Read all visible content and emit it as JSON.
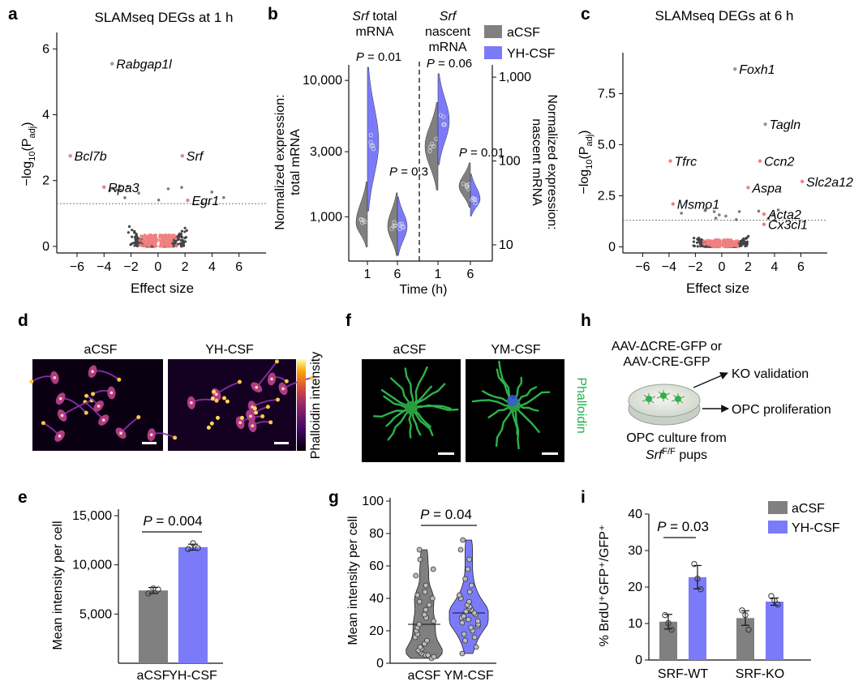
{
  "colors": {
    "acsf": "#808080",
    "yh": "#7B7BFA",
    "sig": "#F08080",
    "ns": "#444444",
    "green": "#22B04B"
  },
  "panels": {
    "a": "a",
    "b": "b",
    "c": "c",
    "d": "d",
    "e": "e",
    "f": "f",
    "g": "g",
    "h": "h",
    "i": "i"
  },
  "legend": {
    "acsf": "aCSF",
    "yh": "YH-CSF"
  },
  "panel_a": {
    "title": "SLAMseq DEGs at 1 h",
    "xlabel": "Effect size",
    "ylabel_pre": "−log",
    "ylabel_sub": "10",
    "ylabel_mid": "(P",
    "ylabel_psub": "adj",
    "ylabel_post": ")",
    "xticks": [
      "−6",
      "−4",
      "−2",
      "0",
      "2",
      "4",
      "6"
    ],
    "yticks": [
      "0",
      "2",
      "4",
      "6"
    ]
  },
  "panel_b": {
    "left_title": [
      "Srf",
      " total",
      "mRNA"
    ],
    "right_title": [
      "Srf",
      "nascent",
      "mRNA"
    ],
    "ylabel_left": [
      "Normalized expression:",
      "total mRNA"
    ],
    "ylabel_right": [
      "Normalized expression:",
      "nascent mRNA"
    ],
    "yticks_left": [
      "1,000",
      "3,000",
      "10,000"
    ],
    "yticks_right": [
      "10",
      "100",
      "1,000"
    ],
    "xticks": [
      "1",
      "6",
      "1",
      "6"
    ],
    "xlabel": "Time (h)",
    "pvals": [
      "P = 0.01",
      "P = 0.3",
      "P = 0.06",
      "P = 0.01"
    ]
  },
  "panel_c": {
    "title": "SLAMseq DEGs at 6 h",
    "xlabel": "Effect size",
    "ylabel_pre": "−log",
    "ylabel_sub": "10",
    "ylabel_mid": "(P",
    "ylabel_psub": "adj",
    "ylabel_post": ")",
    "xticks": [
      "−6",
      "−4",
      "−2",
      "0",
      "2",
      "4",
      "6"
    ],
    "yticks": [
      "0",
      "2.5",
      "5.0",
      "7.5"
    ]
  },
  "panel_d": {
    "left": "aCSF",
    "right": "YH-CSF",
    "colorbar": "Phalloidin intensity"
  },
  "panel_f": {
    "left": "aCSF",
    "right": "YM-CSF",
    "stain": "Phalloidin"
  },
  "panel_h": {
    "line1": "AAV-ΔCRE-GFP or",
    "line2": "AAV-CRE-GFP",
    "out1": "KO validation",
    "out2": "OPC proliferation",
    "bottom1": "OPC culture from",
    "bottom2_gene": "Srf",
    "bottom2_sup": "F/F",
    "bottom2_rest": " pups"
  },
  "panel_e": {
    "ylabel": "Mean intensity per cell",
    "yticks": [
      "5,000",
      "10,000",
      "15,000"
    ],
    "pval": "P = 0.004"
  },
  "panel_g": {
    "ylabel": "Mean intensity per cell",
    "yticks": [
      "0",
      "20",
      "40",
      "60",
      "80",
      "100"
    ],
    "pval": "P = 0.04"
  },
  "panel_i": {
    "ylabel_text": "% BrdU⁺GFP⁺/GFP⁺",
    "yticks": [
      "0",
      "10",
      "20",
      "30",
      "40"
    ],
    "pval": "P = 0.03"
  },
  "chart_data": [
    {
      "panel": "a",
      "type": "scatter",
      "title": "SLAMseq DEGs at 1 h",
      "xlabel": "Effect size",
      "ylabel": "−log10(Padj)",
      "xlim": [
        -7.5,
        8
      ],
      "ylim": [
        -0.2,
        6.5
      ],
      "threshold": 1.3,
      "labeled_points": [
        {
          "gene": "Rabgap1l",
          "x": -3.4,
          "y": 5.55
        },
        {
          "gene": "Bcl7b",
          "x": -6.5,
          "y": 2.75
        },
        {
          "gene": "Srf",
          "x": 1.8,
          "y": 2.75
        },
        {
          "gene": "Rpa3",
          "x": -4.0,
          "y": 1.8
        },
        {
          "gene": "Egr1",
          "x": 2.2,
          "y": 1.4
        }
      ]
    },
    {
      "panel": "b",
      "type": "violin",
      "left_axis": "log",
      "right_axis": "log",
      "groups": [
        {
          "measure": "total",
          "time": "1",
          "aCSF_median": 900,
          "YH-CSF_median": 3500,
          "p": "P = 0.01"
        },
        {
          "measure": "total",
          "time": "6",
          "aCSF_median": 850,
          "YH-CSF_median": 850,
          "p": "P = 0.3"
        },
        {
          "measure": "nascent",
          "time": "1",
          "aCSF_median": 150,
          "YH-CSF_median": 300,
          "p": "P = 0.06"
        },
        {
          "measure": "nascent",
          "time": "6",
          "aCSF_median": 50,
          "YH-CSF_median": 35,
          "p": "P = 0.01"
        }
      ]
    },
    {
      "panel": "c",
      "type": "scatter",
      "title": "SLAMseq DEGs at 6 h",
      "xlabel": "Effect size",
      "ylabel": "−log10(Padj)",
      "xlim": [
        -7.5,
        8
      ],
      "ylim": [
        -0.3,
        9.5
      ],
      "threshold": 1.3,
      "labeled_points": [
        {
          "gene": "Foxh1",
          "x": 1.0,
          "y": 8.7
        },
        {
          "gene": "Tagln",
          "x": 3.3,
          "y": 6.0
        },
        {
          "gene": "Ccn2",
          "x": 2.9,
          "y": 4.2
        },
        {
          "gene": "Tfrc",
          "x": -3.9,
          "y": 4.2
        },
        {
          "gene": "Slc2a12",
          "x": 6.1,
          "y": 3.2
        },
        {
          "gene": "Aspa",
          "x": 2.0,
          "y": 2.9
        },
        {
          "gene": "Msmo1",
          "x": -3.7,
          "y": 2.1
        },
        {
          "gene": "Acta2",
          "x": 3.2,
          "y": 1.6
        },
        {
          "gene": "Cx3cl1",
          "x": 3.2,
          "y": 1.1
        }
      ]
    },
    {
      "panel": "e",
      "type": "bar",
      "categories": [
        "aCSF",
        "YH-CSF"
      ],
      "values": [
        7400,
        11800
      ],
      "errors": [
        300,
        300
      ],
      "points": [
        [
          7100,
          7600,
          7500
        ],
        [
          11600,
          12200,
          11700
        ]
      ],
      "ylabel": "Mean intensity per cell",
      "ylim": [
        0,
        15000
      ],
      "pval": "P = 0.004"
    },
    {
      "panel": "g",
      "type": "violin",
      "categories": [
        "aCSF",
        "YM-CSF"
      ],
      "points": [
        [
          3,
          4,
          5,
          5,
          6,
          7,
          8,
          9,
          10,
          12,
          14,
          16,
          18,
          20,
          22,
          24,
          26,
          28,
          30,
          33,
          36,
          38,
          40,
          42,
          44,
          48,
          54,
          58,
          64,
          70
        ],
        [
          6,
          10,
          14,
          16,
          18,
          20,
          22,
          23,
          24,
          25,
          26,
          27,
          28,
          29,
          30,
          31,
          32,
          33,
          34,
          35,
          36,
          38,
          40,
          42,
          44,
          48,
          52,
          58,
          64,
          70,
          76
        ]
      ],
      "ylabel": "Mean intensity per cell",
      "ylim": [
        0,
        100
      ],
      "pval": "P = 0.04"
    },
    {
      "panel": "i",
      "type": "bar",
      "categories": [
        "SRF-WT",
        "SRF-KO"
      ],
      "series": [
        {
          "name": "aCSF",
          "values": [
            10.5,
            11.5
          ],
          "errors": [
            2,
            2
          ],
          "points": [
            [
              12.3,
              10.1,
              8.3
            ],
            [
              13.6,
              12.3,
              8.3
            ]
          ]
        },
        {
          "name": "YH-CSF",
          "values": [
            22.7,
            16.0
          ],
          "errors": [
            3.2,
            1.0
          ],
          "points": [
            [
              26.3,
              22.3,
              19.4
            ],
            [
              17.5,
              16.3,
              15.2
            ]
          ]
        }
      ],
      "ylabel": "% BrdU+GFP+/GFP+",
      "ylim": [
        0,
        40
      ],
      "pval": "P = 0.03"
    }
  ]
}
